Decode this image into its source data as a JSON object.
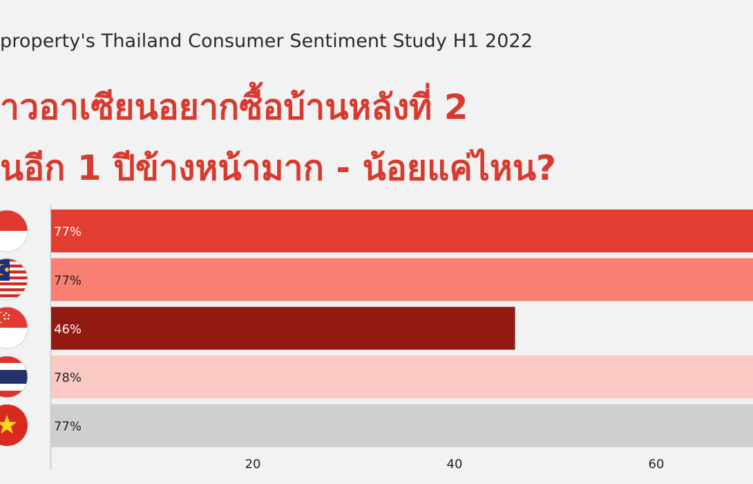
{
  "header": {
    "subtitle": "property's Thailand Consumer Sentiment Study H1 2022",
    "title_line1": "าวอาเซียนอยากซื้อบ้านหลังที่ 2",
    "title_line2": "นอีก 1 ปีข้างหน้ามาก - น้อยแค่ไหน?"
  },
  "chart_data": {
    "type": "bar",
    "orientation": "horizontal",
    "categories": [
      "Indonesia",
      "Malaysia",
      "Singapore",
      "Thailand",
      "Vietnam"
    ],
    "values": [
      77,
      77,
      46,
      78,
      77
    ],
    "value_labels": [
      "77%",
      "77%",
      "46%",
      "78%",
      "77%"
    ],
    "x_ticks": [
      "20",
      "40",
      "60"
    ],
    "xlim": [
      0,
      70
    ],
    "grid": false,
    "colors": [
      "#e23d31",
      "#f87f71",
      "#931a12",
      "#fbc9c3",
      "#cfcfcf"
    ],
    "label_colors": [
      "#ffffff",
      "#222222",
      "#ffffff",
      "#222222",
      "#222222"
    ]
  },
  "flags": [
    {
      "name": "Indonesia",
      "icon": "indonesia-flag-icon"
    },
    {
      "name": "Malaysia",
      "icon": "malaysia-flag-icon"
    },
    {
      "name": "Singapore",
      "icon": "singapore-flag-icon"
    },
    {
      "name": "Thailand",
      "icon": "thailand-flag-icon"
    },
    {
      "name": "Vietnam",
      "icon": "vietnam-flag-icon"
    }
  ]
}
